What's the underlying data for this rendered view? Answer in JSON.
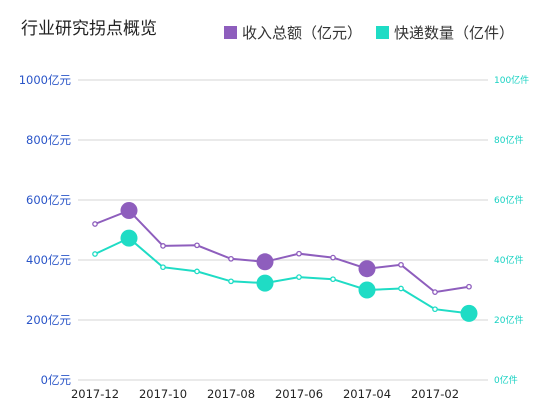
{
  "chart_title": "行业研究拐点概览",
  "colors": {
    "revenue": "#8e5ebd",
    "volume": "#1fdcc5",
    "left_axis": "#2a55c8",
    "right_axis": "#19d2c3",
    "grid": "#d4d4d4"
  },
  "chart_data": {
    "type": "line",
    "title": "行业研究拐点概览",
    "x": [
      "2017-12",
      "2017-11",
      "2017-10",
      "2017-09",
      "2017-08",
      "2017-07",
      "2017-06",
      "2017-05",
      "2017-04",
      "2017-03",
      "2017-02",
      "2017-01"
    ],
    "x_tick_labels": [
      "2017-12",
      "2017-10",
      "2017-08",
      "2017-06",
      "2017-04",
      "2017-02"
    ],
    "left_axis": {
      "ylim": [
        0,
        1000
      ],
      "ticks": [
        "0亿元",
        "200亿元",
        "400亿元",
        "600亿元",
        "800亿元",
        "1000亿元"
      ]
    },
    "right_axis": {
      "ylim": [
        0,
        100
      ],
      "ticks": [
        "0亿件",
        "20亿件",
        "40亿件",
        "60亿件",
        "80亿件",
        "100亿件"
      ]
    },
    "grid": true,
    "legend_position": "top-right",
    "series": [
      {
        "name": "收入总额（亿元）",
        "axis": "left",
        "values": [
          520,
          565,
          447,
          449,
          404,
          394,
          421,
          408,
          371,
          384,
          293,
          311
        ],
        "highlighted_index": [
          1,
          5,
          8
        ]
      },
      {
        "name": "快递数量（亿件）",
        "axis": "right",
        "values": [
          42,
          47.3,
          37.6,
          36.2,
          32.9,
          32.3,
          34.3,
          33.6,
          30,
          30.5,
          23.6,
          22.2
        ],
        "highlighted_index": [
          1,
          5,
          8,
          11
        ]
      }
    ]
  }
}
